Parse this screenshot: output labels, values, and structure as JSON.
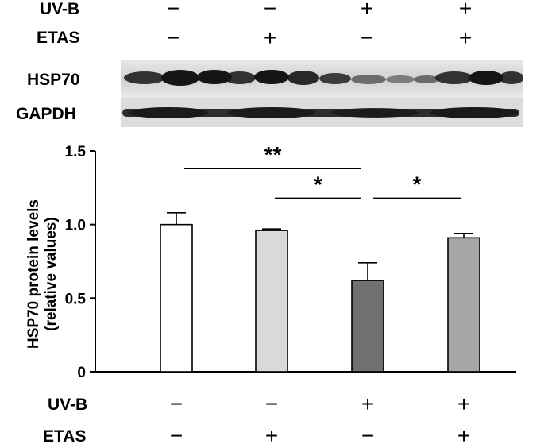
{
  "top_conditions": {
    "uvb_label": "UV-B",
    "etas_label": "ETAS",
    "uvb": [
      "−",
      "−",
      "+",
      "+"
    ],
    "etas": [
      "−",
      "+",
      "−",
      "+"
    ]
  },
  "blot": {
    "hsp70_label": "HSP70",
    "gapdh_label": "GAPDH"
  },
  "bottom_conditions": {
    "uvb_label": "UV-B",
    "etas_label": "ETAS",
    "uvb": [
      "−",
      "−",
      "+",
      "+"
    ],
    "etas": [
      "−",
      "+",
      "−",
      "+"
    ]
  },
  "chart_data": {
    "type": "bar",
    "ylabel_line1": "HSP70 protein levels",
    "ylabel_line2": "(relative values)",
    "ylim": [
      0,
      1.5
    ],
    "yticks": [
      "0",
      "0.5",
      "1.0",
      "1.5"
    ],
    "values": [
      1.0,
      0.96,
      0.62,
      0.91
    ],
    "errors": [
      0.08,
      0.01,
      0.12,
      0.03
    ],
    "colors": [
      "#ffffff",
      "#d9d9d9",
      "#707070",
      "#a6a6a6"
    ],
    "significance": [
      {
        "from": 0,
        "to": 2,
        "label": "**",
        "y": 1.38
      },
      {
        "from": 1,
        "to": 2,
        "label": "*",
        "y": 1.18
      },
      {
        "from": 2,
        "to": 3,
        "label": "*",
        "y": 1.18
      }
    ]
  }
}
